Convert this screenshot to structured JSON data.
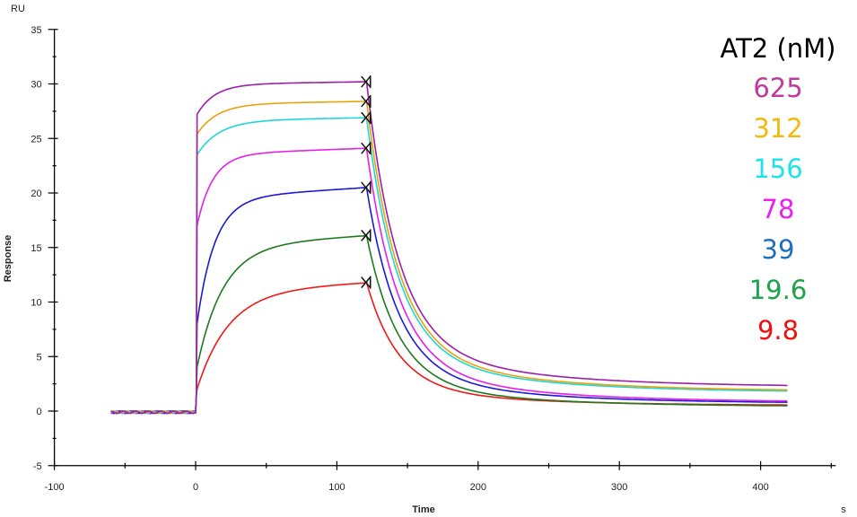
{
  "chart_data": {
    "type": "line",
    "title": "",
    "xlabel": "Time",
    "xunit": "s",
    "ylabel": "Response",
    "yunit": "RU",
    "xlim": [
      -100,
      450
    ],
    "ylim": [
      -5,
      35
    ],
    "x_ticks": [
      -100,
      0,
      100,
      200,
      300,
      400
    ],
    "y_ticks": [
      -5,
      0,
      5,
      10,
      15,
      20,
      25,
      30,
      35
    ],
    "grid": false,
    "legend_title": "AT2 (nM)",
    "legend_position": "right",
    "association_end_marker_x": 118,
    "series": [
      {
        "name": "625",
        "color": "#9b1fa8",
        "label_color": "#c0399c",
        "plateau": 30.2,
        "initial_jump": 27.2,
        "ka": 0.08,
        "end": 2.2
      },
      {
        "name": "312",
        "color": "#e8a20c",
        "label_color": "#f2b90f",
        "plateau": 28.4,
        "initial_jump": 25.4,
        "ka": 0.07,
        "end": 1.8
      },
      {
        "name": "156",
        "color": "#1fd6d6",
        "label_color": "#1ee3ea",
        "plateau": 26.9,
        "initial_jump": 23.5,
        "ka": 0.065,
        "end": 1.7
      },
      {
        "name": "78",
        "color": "#e620e6",
        "label_color": "#ee1fee",
        "plateau": 24.1,
        "initial_jump": 17.0,
        "ka": 0.09,
        "end": 0.8
      },
      {
        "name": "39",
        "color": "#1a1ad6",
        "label_color": "#1f6fc0",
        "plateau": 20.5,
        "initial_jump": 8.0,
        "ka": 0.08,
        "end": 0.7
      },
      {
        "name": "19.6",
        "color": "#1e7a1e",
        "label_color": "#1ea34a",
        "plateau": 16.1,
        "initial_jump": 4.0,
        "ka": 0.055,
        "end": 0.4
      },
      {
        "name": "9.8",
        "color": "#f01818",
        "label_color": "#ee1111",
        "plateau": 11.8,
        "initial_jump": 2.0,
        "ka": 0.045,
        "end": 0.5
      }
    ],
    "phases": {
      "baseline": {
        "x_start": -60,
        "x_end": 0,
        "y": -0.1
      },
      "association": {
        "x_start": 0,
        "x_end": 118
      },
      "dissociation": {
        "x_start": 118,
        "x_end": 420
      }
    }
  }
}
